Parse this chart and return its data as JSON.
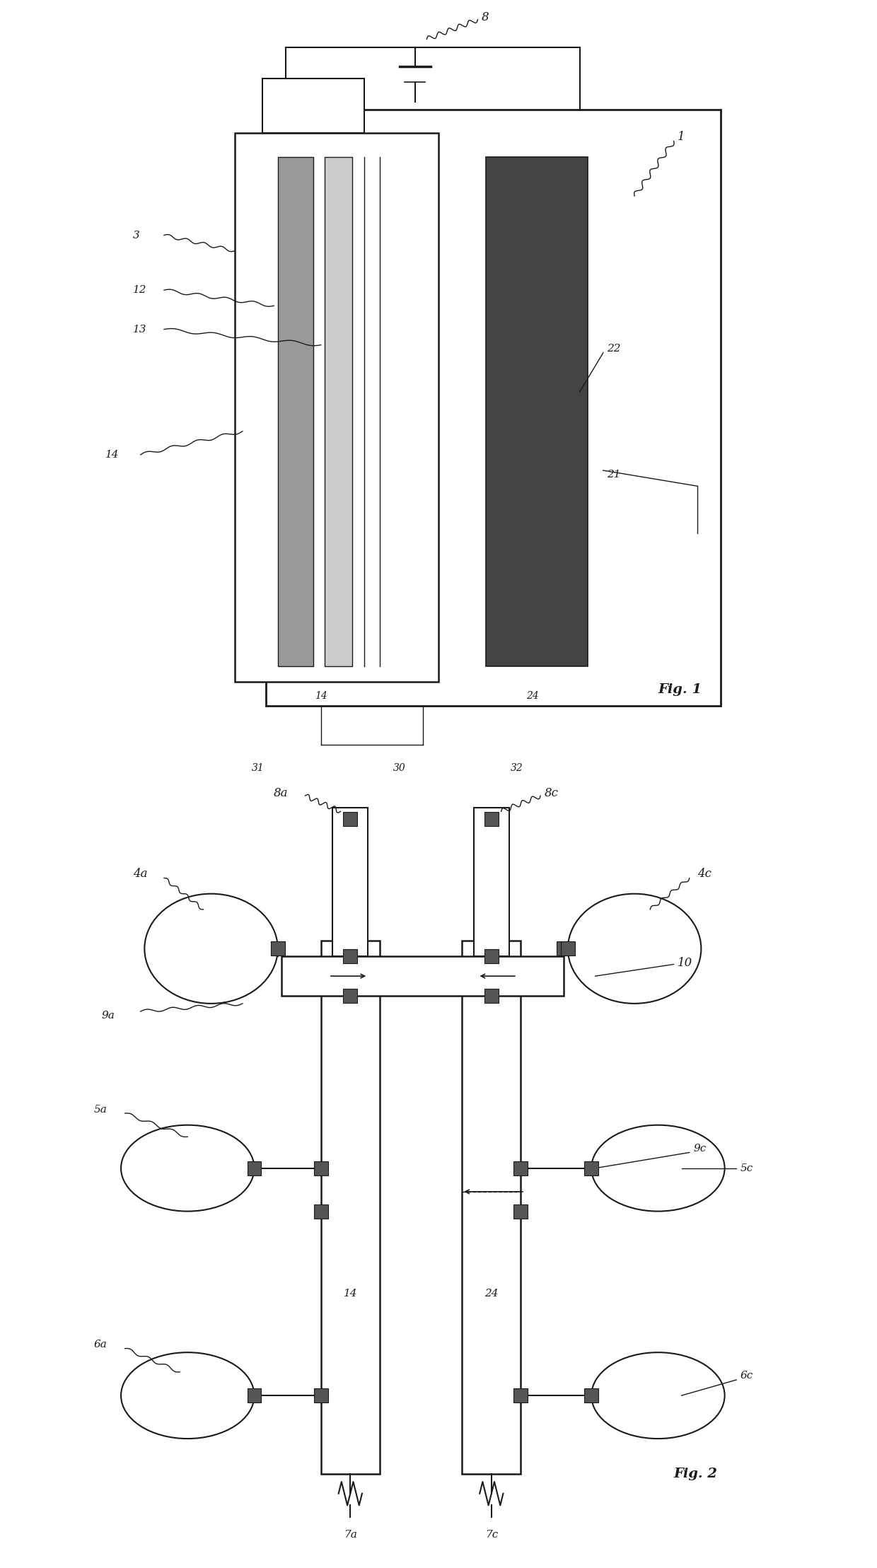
{
  "bg_color": "#ffffff",
  "line_color": "#1a1a1a",
  "fig1": {
    "label_1": "1",
    "label_3": "3",
    "label_8": "8",
    "label_12": "12",
    "label_13": "13",
    "label_14": "14",
    "label_21": "21",
    "label_22": "22",
    "label_24": "24",
    "label_30": "30",
    "label_31": "31",
    "label_32": "32",
    "fig_label": "Fig. 1"
  },
  "fig2": {
    "label_4a": "4a",
    "label_4c": "4c",
    "label_5a": "5a",
    "label_5c": "5c",
    "label_6a": "6a",
    "label_6c": "6c",
    "label_7a": "7a",
    "label_7c": "7c",
    "label_8a": "8a",
    "label_8c": "8c",
    "label_9a": "9a",
    "label_9c": "9c",
    "label_10": "10",
    "label_14": "14",
    "label_24": "24",
    "fig_label": "Fig. 2"
  }
}
